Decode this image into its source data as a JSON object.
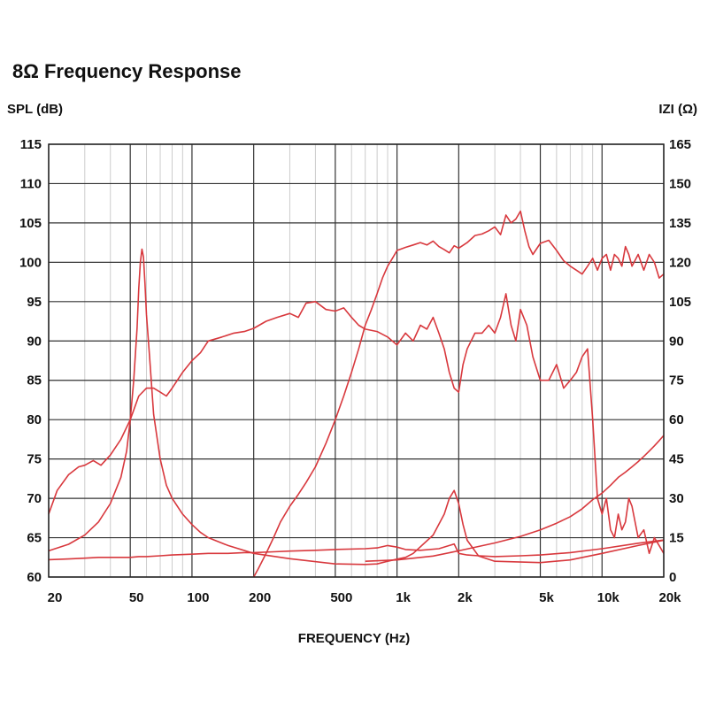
{
  "chart_data": {
    "type": "line",
    "title": "8Ω Frequency Response",
    "xlabel": "FREQUENCY (Hz)",
    "ylabel": "SPL (dB)",
    "y2label": "IZI (Ω)",
    "x_scale": "log",
    "xlim": [
      20,
      20000
    ],
    "ylim": [
      60,
      115
    ],
    "y2lim": [
      0,
      165
    ],
    "grid": true,
    "x_ticks": [
      {
        "value": 20,
        "label": "20"
      },
      {
        "value": 50,
        "label": "50"
      },
      {
        "value": 100,
        "label": "100"
      },
      {
        "value": 200,
        "label": "200"
      },
      {
        "value": 500,
        "label": "500"
      },
      {
        "value": 1000,
        "label": "1k"
      },
      {
        "value": 2000,
        "label": "2k"
      },
      {
        "value": 5000,
        "label": "5k"
      },
      {
        "value": 10000,
        "label": "10k"
      },
      {
        "value": 20000,
        "label": "20k"
      }
    ],
    "y_ticks": [
      "60",
      "65",
      "70",
      "75",
      "80",
      "85",
      "90",
      "95",
      "100",
      "105",
      "110",
      "115"
    ],
    "y2_ticks": [
      "0",
      "15",
      "30",
      "45",
      "60",
      "75",
      "90",
      "105",
      "120",
      "135",
      "150",
      "165"
    ],
    "colors": {
      "curve": "#d8383d",
      "grid_major": "#333333",
      "grid_minor": "#cccccc"
    },
    "series": [
      {
        "axis": "left",
        "x": [
          20,
          22,
          25,
          28,
          30,
          33,
          36,
          40,
          45,
          50,
          55,
          60,
          65,
          70,
          75,
          80,
          90,
          100,
          110,
          120,
          140,
          160,
          180,
          200,
          230,
          260,
          300,
          330,
          360,
          400,
          450,
          500,
          550,
          600,
          650,
          700,
          800,
          900,
          1000,
          1100,
          1200,
          1300,
          1400,
          1500,
          1600,
          1700,
          1800,
          1900,
          2000,
          2100,
          2200,
          2400,
          2600,
          2800,
          3000,
          3200,
          3400,
          3600,
          3800,
          4000,
          4300,
          4600,
          5000,
          5500,
          6000,
          6500,
          7000,
          7500,
          8000,
          8500,
          9000,
          9500,
          10000,
          10500,
          11000,
          11500,
          12000,
          12500,
          13000,
          13500,
          14000,
          15000,
          16000,
          17000,
          18000,
          19000,
          20000
        ],
        "y": [
          68,
          71,
          73,
          74,
          74.2,
          74.8,
          74.2,
          75.5,
          77.5,
          80,
          83,
          84,
          84,
          83.5,
          83,
          84,
          86,
          87.5,
          88.5,
          90,
          90.5,
          91,
          91.2,
          91.6,
          92.5,
          93,
          93.5,
          93,
          94.8,
          95,
          94,
          93.8,
          94.2,
          93,
          92,
          91.5,
          91.2,
          90.5,
          89.5,
          91,
          90,
          92,
          91.5,
          93,
          91,
          89,
          86,
          84,
          83.5,
          87,
          89,
          91,
          91,
          92,
          91,
          93,
          96,
          92,
          90,
          94,
          92,
          88,
          85,
          85,
          87,
          84,
          85,
          86,
          88,
          89,
          80,
          70,
          68,
          70,
          66,
          65,
          68,
          66,
          67,
          70,
          69,
          65,
          66,
          63,
          65,
          64,
          63
        ]
      },
      {
        "axis": "left",
        "x": [
          20,
          25,
          30,
          35,
          40,
          45,
          50,
          55,
          60,
          70,
          80,
          100,
          120,
          150,
          180,
          200,
          250,
          300,
          400,
          500,
          700,
          800,
          900,
          1000,
          1100,
          1300,
          1600,
          1800,
          1900,
          2000,
          2200,
          2500,
          3000,
          4000,
          5000,
          7000,
          10000,
          15000,
          20000
        ],
        "y": [
          62.2,
          62.3,
          62.4,
          62.5,
          62.5,
          62.5,
          62.5,
          62.6,
          62.6,
          62.7,
          62.8,
          62.9,
          63,
          63,
          63.1,
          63.1,
          63.2,
          63.3,
          63.4,
          63.5,
          63.6,
          63.7,
          64,
          63.8,
          63.5,
          63.4,
          63.6,
          64,
          64.2,
          63,
          62.8,
          62.7,
          62.6,
          62.7,
          62.8,
          63.1,
          63.6,
          64.3,
          64.7
        ]
      },
      {
        "axis": "left",
        "x": [
          200,
          210,
          230,
          250,
          270,
          300,
          330,
          360,
          400,
          450,
          500,
          550,
          600,
          650,
          700,
          750,
          800,
          850,
          900,
          950,
          1000,
          1050,
          1100,
          1200,
          1300,
          1400,
          1500,
          1600,
          1700,
          1800,
          1900,
          2000,
          2200,
          2400,
          2600,
          2800,
          3000,
          3200,
          3400,
          3600,
          3800,
          4000,
          4200,
          4400,
          4600,
          5000,
          5500,
          6000,
          6500,
          7000,
          7500,
          8000,
          8500,
          9000,
          9500,
          10000,
          10500,
          11000,
          11500,
          12000,
          12500,
          13000,
          13500,
          14000,
          15000,
          16000,
          17000,
          18000,
          19000,
          20000
        ],
        "y": [
          60,
          61,
          63,
          65,
          67,
          69,
          70.5,
          72,
          74,
          77,
          80,
          83,
          86,
          89,
          92,
          94,
          96,
          98,
          99.5,
          100.5,
          101.5,
          101.7,
          101.9,
          102.2,
          102.5,
          102.2,
          102.7,
          102,
          101.6,
          101.2,
          102.1,
          101.8,
          102.5,
          103.4,
          103.6,
          104,
          104.5,
          103.5,
          106,
          105,
          105.5,
          106.5,
          104,
          102,
          101,
          102.4,
          102.8,
          101.5,
          100.2,
          99.5,
          99,
          98.5,
          99.5,
          100.5,
          99,
          100.5,
          101,
          99,
          101,
          100.5,
          99.5,
          102,
          101,
          99.5,
          101,
          99,
          101,
          100,
          98,
          98.5
        ]
      },
      {
        "axis": "right",
        "x": [
          20,
          25,
          30,
          35,
          40,
          45,
          48,
          50,
          52,
          54,
          55,
          56,
          57,
          58,
          59,
          60,
          62,
          65,
          70,
          75,
          80,
          90,
          100,
          110,
          120,
          150,
          200,
          300,
          500,
          700,
          800,
          900,
          1000,
          1100,
          1200,
          1500,
          1700,
          1800,
          1900,
          2000,
          2100,
          2200,
          2500,
          3000,
          5000,
          7000,
          10000,
          15000,
          20000
        ],
        "y": [
          10,
          12.5,
          16,
          21,
          28,
          38,
          48,
          60,
          75,
          95,
          110,
          120,
          125,
          122,
          112,
          100,
          85,
          62,
          45,
          35,
          30,
          24,
          20,
          17,
          15,
          12,
          9,
          7,
          5,
          4.8,
          5,
          6,
          6.8,
          7.5,
          9,
          16,
          24,
          30,
          33,
          28,
          20,
          14,
          8,
          6,
          5.5,
          6.5,
          9,
          12,
          14
        ]
      },
      {
        "axis": "right",
        "x": [
          700,
          1000,
          1500,
          2000,
          3000,
          4000,
          5000,
          6000,
          7000,
          8000,
          9000,
          10000,
          11000,
          12000,
          13000,
          14000,
          15000,
          16000,
          17000,
          18000,
          19000,
          20000
        ],
        "y": [
          6,
          6.5,
          8,
          10,
          13,
          15.5,
          18,
          20.5,
          23,
          26,
          29.5,
          32,
          35,
          38,
          40,
          42,
          44,
          46,
          48,
          50,
          52,
          54
        ]
      }
    ]
  }
}
